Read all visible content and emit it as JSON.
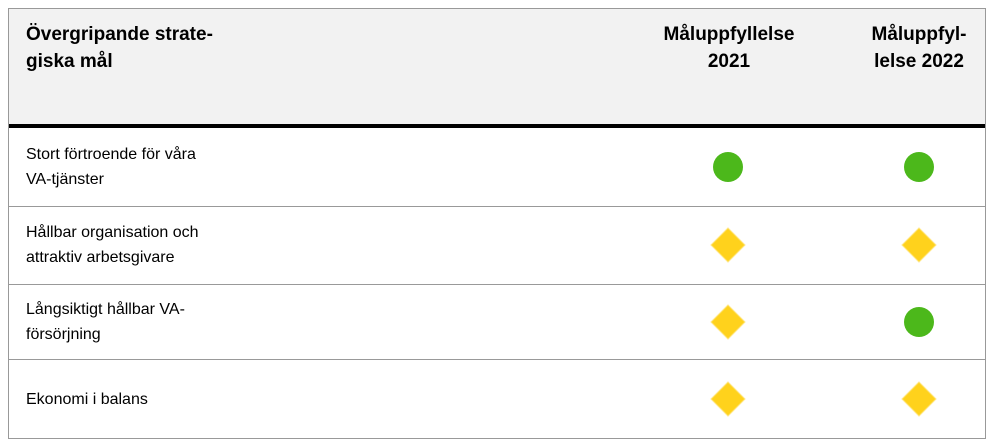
{
  "table": {
    "header": [
      "Övergripande strate-\ngiska mål",
      "Måluppfyllelse\n2021",
      "Måluppfyl-\nlelse 2022"
    ],
    "rows": [
      {
        "label": "Stort förtroende för våra\nVA-tjänster",
        "status": [
          {
            "shape": "circle",
            "color": "#4cb81b"
          },
          {
            "shape": "circle",
            "color": "#4cb81b"
          }
        ]
      },
      {
        "label": "Hållbar organisation och\nattraktiv arbetsgivare",
        "status": [
          {
            "shape": "diamond",
            "color": "#ffd21c"
          },
          {
            "shape": "diamond",
            "color": "#ffd21c"
          }
        ]
      },
      {
        "label": "Långsiktigt hållbar VA-\nförsörjning",
        "status": [
          {
            "shape": "diamond",
            "color": "#ffd21c"
          },
          {
            "shape": "circle",
            "color": "#4cb81b"
          }
        ]
      },
      {
        "label": "Ekonomi i balans",
        "status": [
          {
            "shape": "diamond",
            "color": "#ffd21c"
          },
          {
            "shape": "diamond",
            "color": "#ffd21c"
          }
        ]
      }
    ]
  }
}
